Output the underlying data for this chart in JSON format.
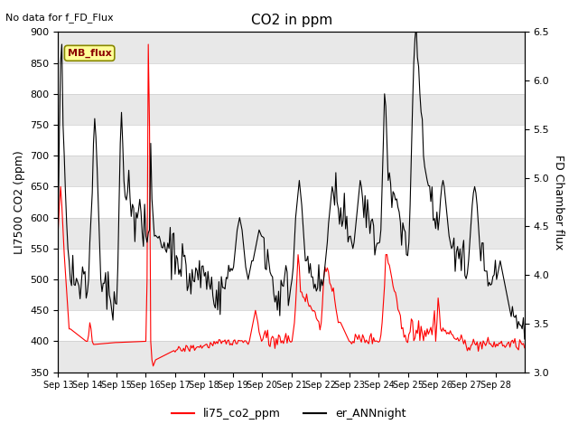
{
  "title": "CO2 in ppm",
  "top_left_text": "No data for f_FD_Flux",
  "ylabel_left": "LI7500 CO2 (ppm)",
  "ylabel_right": "FD Chamber flux",
  "ylim_left": [
    350,
    900
  ],
  "ylim_right": [
    3.0,
    6.5
  ],
  "yticks_left": [
    350,
    400,
    450,
    500,
    550,
    600,
    650,
    700,
    750,
    800,
    850,
    900
  ],
  "yticks_right": [
    3.0,
    3.5,
    4.0,
    4.5,
    5.0,
    5.5,
    6.0,
    6.5
  ],
  "xtick_labels": [
    "Sep 13",
    "Sep 14",
    "Sep 15",
    "Sep 16",
    "Sep 17",
    "Sep 18",
    "Sep 19",
    "Sep 20",
    "Sep 21",
    "Sep 22",
    "Sep 23",
    "Sep 24",
    "Sep 25",
    "Sep 26",
    "Sep 27",
    "Sep 28"
  ],
  "legend_entries": [
    "li75_co2_ppm",
    "er_ANNnight"
  ],
  "legend_colors": [
    "#ff0000",
    "#000000"
  ],
  "line_color_red": "#ff0000",
  "line_color_black": "#000000",
  "mb_flux_box_color": "#ffff99",
  "mb_flux_box_edge": "#888800",
  "background_color": "#ffffff",
  "band_color": "#e8e8e8",
  "grid_color": "#cccccc"
}
